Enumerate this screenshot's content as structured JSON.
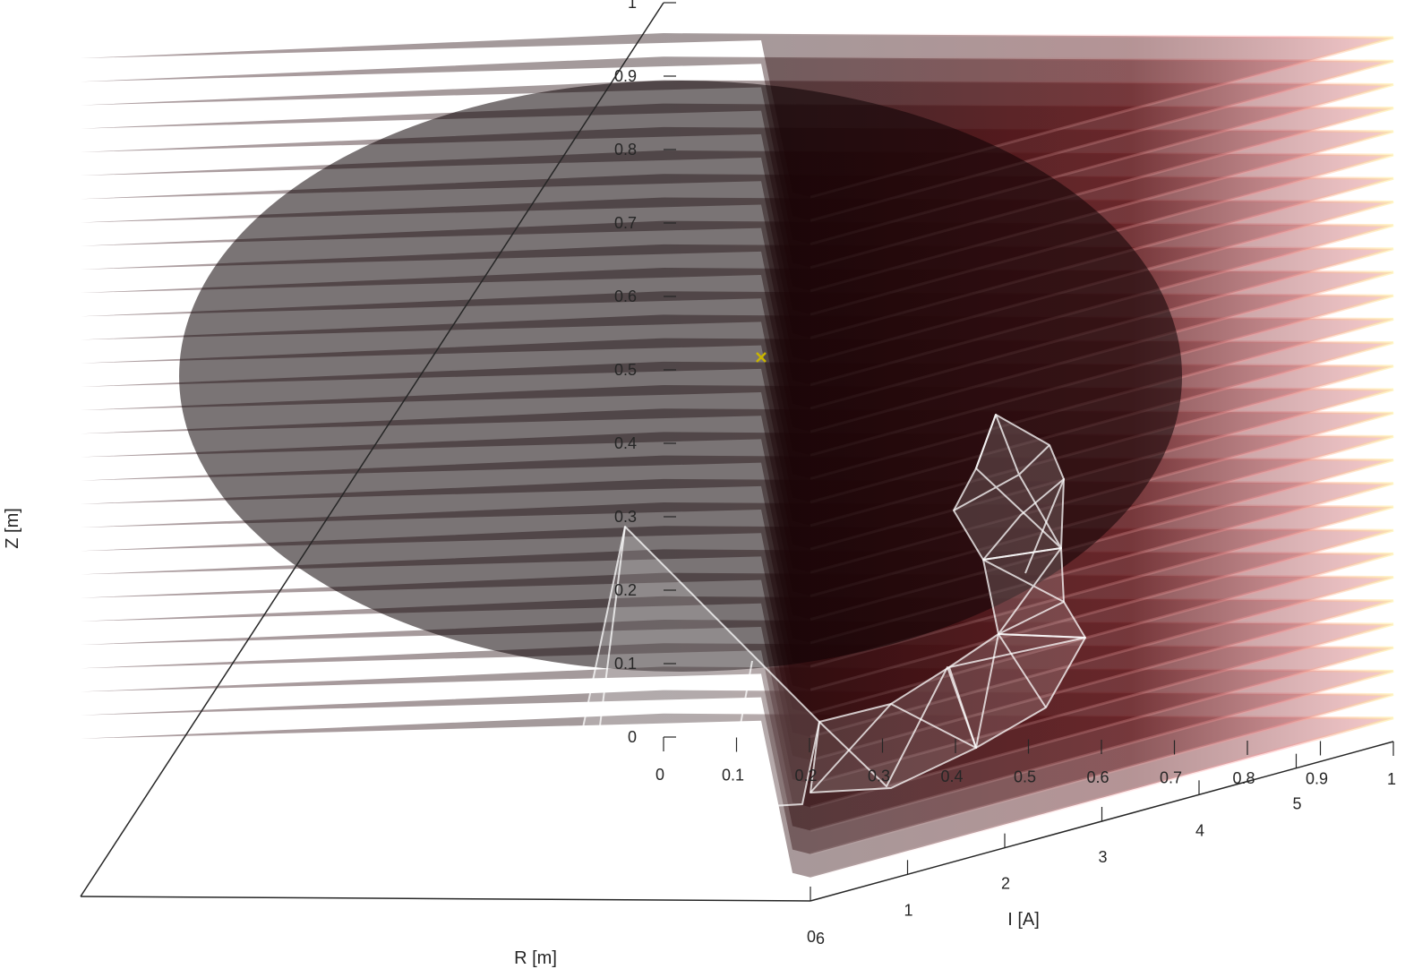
{
  "chart_data": {
    "type": "surface-3d",
    "x_axis": {
      "label": "R [m]",
      "range": [
        0,
        1
      ],
      "ticks": [
        "0",
        "0.1",
        "0.2",
        "0.3",
        "0.4",
        "0.5",
        "0.6",
        "0.7",
        "0.8",
        "0.9",
        "1"
      ]
    },
    "y_axis": {
      "label": "I [A]",
      "range": [
        0,
        6
      ],
      "ticks": [
        "0",
        "1",
        "2",
        "3",
        "4",
        "5",
        "6"
      ]
    },
    "z_axis": {
      "label": "Z [m]",
      "range": [
        0,
        1
      ],
      "ticks": [
        "0",
        "0.1",
        "0.2",
        "0.3",
        "0.4",
        "0.5",
        "0.6",
        "0.7",
        "0.8",
        "0.9",
        "1"
      ]
    },
    "slice_count": 30,
    "colormap": [
      "#3a0c0f",
      "#7a1f23",
      "#c9575c",
      "#f2b3b3",
      "#ffe79a"
    ],
    "marker": {
      "symbol": "x",
      "color": "#c8b400",
      "x": 0.62,
      "y": 3.0,
      "z": 0.73
    },
    "tube_color": "#ffffff",
    "grid": false,
    "legend": "none"
  }
}
